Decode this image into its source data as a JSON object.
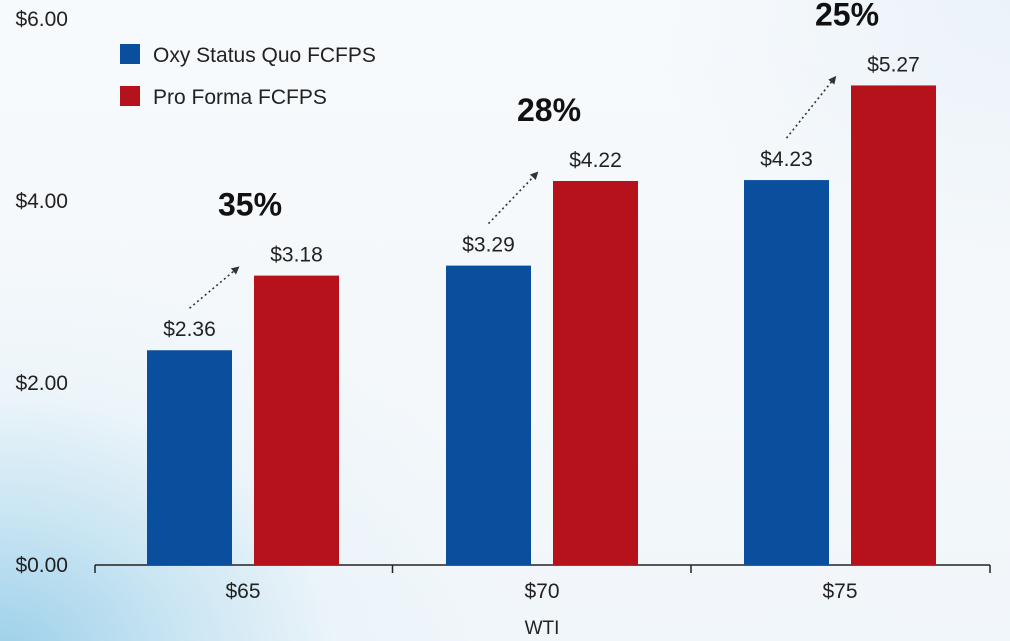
{
  "chart_data": {
    "type": "bar",
    "xlabel": "WTI",
    "ylabel": "",
    "title": "",
    "ylim": [
      0,
      6
    ],
    "yticks": [
      "$0.00",
      "$2.00",
      "$4.00",
      "$6.00"
    ],
    "ytick_values": [
      0,
      2,
      4,
      6
    ],
    "categories": [
      "$65",
      "$70",
      "$75"
    ],
    "series": [
      {
        "name": "Oxy Status Quo FCFPS",
        "color": "#0a4f9e",
        "values": [
          2.36,
          3.29,
          4.23
        ],
        "labels": [
          "$2.36",
          "$3.29",
          "$4.23"
        ]
      },
      {
        "name": "Pro Forma FCFPS",
        "color": "#b5121b",
        "values": [
          3.18,
          4.22,
          5.27
        ],
        "labels": [
          "$3.18",
          "$4.22",
          "$5.27"
        ]
      }
    ],
    "annotations": [
      "35%",
      "28%",
      "25%"
    ],
    "legend_position": "top-left",
    "grid": false
  }
}
